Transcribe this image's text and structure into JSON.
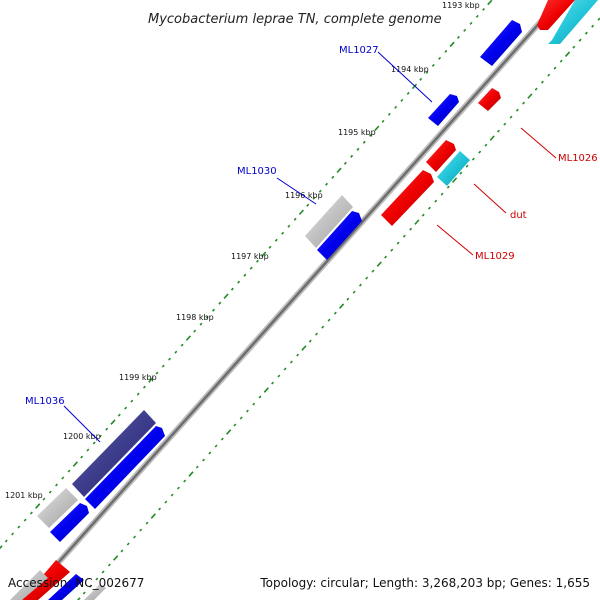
{
  "header": {
    "title": "Mycobacterium leprae TN, complete genome"
  },
  "ticks": [
    {
      "label": "1193 kbp"
    },
    {
      "label": "1194 kbp"
    },
    {
      "label": "1195 kbp"
    },
    {
      "label": "1196 kbp"
    },
    {
      "label": "1197 kbp"
    },
    {
      "label": "1198 kbp"
    },
    {
      "label": "1199 kbp"
    },
    {
      "label": "1200 kbp"
    },
    {
      "label": "1201 kbp"
    }
  ],
  "genes": [
    {
      "name": "ML1027",
      "color": "#0000cc"
    },
    {
      "name": "ML1026",
      "color": "#cc0000"
    },
    {
      "name": "ML1030",
      "color": "#0000cc"
    },
    {
      "name": "dut",
      "color": "#cc0000"
    },
    {
      "name": "ML1029",
      "color": "#cc0000"
    },
    {
      "name": "ML1036",
      "color": "#0000cc"
    }
  ],
  "footer": {
    "accession": "Accession: NC_002677",
    "summary": "Topology: circular; Length: 3,268,203 bp; Genes: 1,655"
  },
  "colors": {
    "backbone": "#8c8c8c",
    "forward_gene": "#0000ee",
    "reverse_gene": "#ee0000",
    "rna_gene": "#33ccdd",
    "pseudo_gene": "#c0c0c0",
    "dark_gene": "#3c3c8c",
    "tick_dots": "#228b22"
  }
}
